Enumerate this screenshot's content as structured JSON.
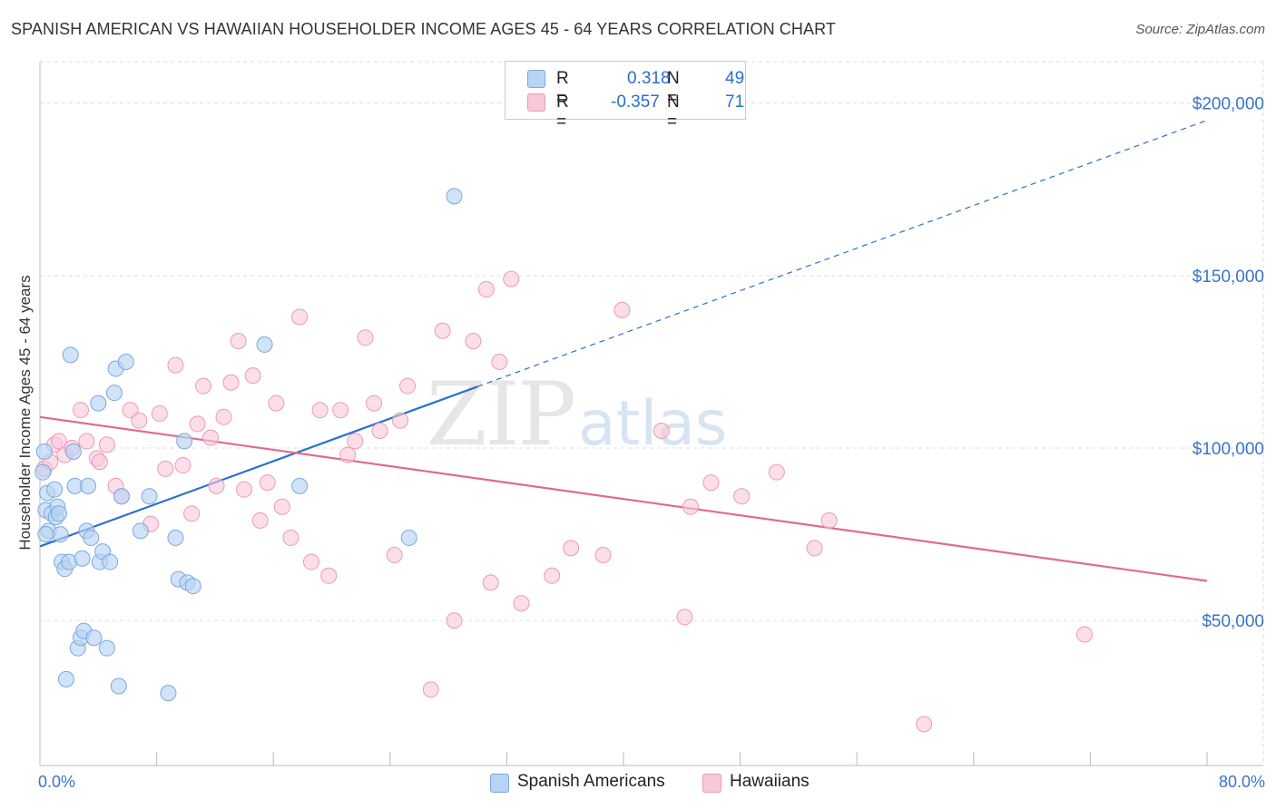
{
  "title": "SPANISH AMERICAN VS HAWAIIAN HOUSEHOLDER INCOME AGES 45 - 64 YEARS CORRELATION CHART",
  "source": "Source: ZipAtlas.com",
  "watermark": {
    "zip": "ZIP",
    "atlas": "atlas"
  },
  "legend": {
    "r_label": "R =",
    "n_label": "N =",
    "rows": [
      {
        "r": "0.318",
        "n": "49"
      },
      {
        "r": "-0.357",
        "n": "71"
      }
    ]
  },
  "bottom_legend": [
    "Spanish Americans",
    "Hawaiians"
  ],
  "colors": {
    "blue_fill": "#b8d4f3",
    "blue_stroke": "#7aa8e0",
    "blue_line": "#2a6fcf",
    "pink_fill": "#f8c8d8",
    "pink_stroke": "#ec9ab4",
    "pink_line": "#e06a94",
    "axis_text": "#3b74c9"
  },
  "chart_data": {
    "type": "scatter",
    "title": "SPANISH AMERICAN VS HAWAIIAN HOUSEHOLDER INCOME AGES 45 - 64 YEARS CORRELATION CHART",
    "xlabel": "",
    "ylabel": "Householder Income Ages 45 - 64 years",
    "xlim": [
      0,
      80
    ],
    "ylim": [
      8000,
      212000
    ],
    "x_tick_labels": [
      "0.0%",
      "80.0%"
    ],
    "y_ticks": [
      50000,
      100000,
      150000,
      200000
    ],
    "y_tick_labels": [
      "$50,000",
      "$100,000",
      "$150,000",
      "$200,000"
    ],
    "grid": true,
    "series": [
      {
        "name": "Spanish Americans",
        "r": 0.318,
        "n": 49,
        "trend": {
          "x0": 0,
          "y0": 71500,
          "x1": 80,
          "y1": 195000,
          "solid_until_x": 30
        },
        "points": [
          [
            0.2,
            93000
          ],
          [
            0.3,
            99000
          ],
          [
            0.4,
            82000
          ],
          [
            0.5,
            87000
          ],
          [
            0.6,
            76000
          ],
          [
            0.8,
            81000
          ],
          [
            1.0,
            88000
          ],
          [
            1.1,
            80000
          ],
          [
            1.2,
            83000
          ],
          [
            1.3,
            81000
          ],
          [
            1.4,
            75000
          ],
          [
            1.5,
            67000
          ],
          [
            1.7,
            65000
          ],
          [
            1.8,
            33000
          ],
          [
            2.0,
            67000
          ],
          [
            2.1,
            127000
          ],
          [
            2.3,
            99000
          ],
          [
            2.4,
            89000
          ],
          [
            2.6,
            42000
          ],
          [
            2.8,
            45000
          ],
          [
            2.9,
            68000
          ],
          [
            3.0,
            47000
          ],
          [
            3.2,
            76000
          ],
          [
            3.3,
            89000
          ],
          [
            3.5,
            74000
          ],
          [
            3.7,
            45000
          ],
          [
            4.0,
            113000
          ],
          [
            4.1,
            67000
          ],
          [
            4.3,
            70000
          ],
          [
            4.6,
            42000
          ],
          [
            4.8,
            67000
          ],
          [
            5.1,
            116000
          ],
          [
            5.2,
            123000
          ],
          [
            5.4,
            31000
          ],
          [
            5.6,
            86000
          ],
          [
            5.9,
            125000
          ],
          [
            6.9,
            76000
          ],
          [
            7.5,
            86000
          ],
          [
            8.8,
            29000
          ],
          [
            9.3,
            74000
          ],
          [
            9.5,
            62000
          ],
          [
            9.9,
            102000
          ],
          [
            10.1,
            61000
          ],
          [
            10.5,
            60000
          ],
          [
            15.4,
            130000
          ],
          [
            17.8,
            89000
          ],
          [
            25.3,
            74000
          ],
          [
            28.4,
            173000
          ],
          [
            0.4,
            75000
          ]
        ]
      },
      {
        "name": "Hawaiians",
        "r": -0.357,
        "n": 71,
        "trend": {
          "x0": 0,
          "y0": 109000,
          "x1": 80,
          "y1": 61500
        },
        "points": [
          [
            0.3,
            94000
          ],
          [
            0.7,
            96000
          ],
          [
            1.0,
            101000
          ],
          [
            1.3,
            102000
          ],
          [
            1.7,
            98000
          ],
          [
            2.2,
            100000
          ],
          [
            2.8,
            111000
          ],
          [
            3.2,
            102000
          ],
          [
            3.9,
            97000
          ],
          [
            4.1,
            96000
          ],
          [
            4.6,
            101000
          ],
          [
            5.2,
            89000
          ],
          [
            5.6,
            86000
          ],
          [
            6.2,
            111000
          ],
          [
            6.8,
            108000
          ],
          [
            7.6,
            78000
          ],
          [
            8.2,
            110000
          ],
          [
            8.6,
            94000
          ],
          [
            9.3,
            124000
          ],
          [
            9.8,
            95000
          ],
          [
            10.4,
            81000
          ],
          [
            10.8,
            107000
          ],
          [
            11.2,
            118000
          ],
          [
            11.7,
            103000
          ],
          [
            12.1,
            89000
          ],
          [
            12.6,
            109000
          ],
          [
            13.1,
            119000
          ],
          [
            13.6,
            131000
          ],
          [
            14.0,
            88000
          ],
          [
            14.6,
            121000
          ],
          [
            15.1,
            79000
          ],
          [
            15.6,
            90000
          ],
          [
            16.2,
            113000
          ],
          [
            16.6,
            83000
          ],
          [
            17.2,
            74000
          ],
          [
            17.8,
            138000
          ],
          [
            18.6,
            67000
          ],
          [
            19.2,
            111000
          ],
          [
            19.8,
            63000
          ],
          [
            20.6,
            111000
          ],
          [
            21.1,
            98000
          ],
          [
            21.6,
            102000
          ],
          [
            22.3,
            132000
          ],
          [
            22.9,
            113000
          ],
          [
            23.3,
            105000
          ],
          [
            24.3,
            69000
          ],
          [
            24.7,
            108000
          ],
          [
            25.2,
            118000
          ],
          [
            26.8,
            30000
          ],
          [
            27.6,
            134000
          ],
          [
            28.4,
            50000
          ],
          [
            29.7,
            131000
          ],
          [
            30.6,
            146000
          ],
          [
            30.9,
            61000
          ],
          [
            31.5,
            125000
          ],
          [
            32.3,
            149000
          ],
          [
            33.0,
            55000
          ],
          [
            35.1,
            63000
          ],
          [
            36.4,
            71000
          ],
          [
            38.6,
            69000
          ],
          [
            39.9,
            140000
          ],
          [
            42.6,
            105000
          ],
          [
            44.2,
            51000
          ],
          [
            44.6,
            83000
          ],
          [
            46.0,
            90000
          ],
          [
            48.1,
            86000
          ],
          [
            50.5,
            93000
          ],
          [
            53.1,
            71000
          ],
          [
            54.1,
            79000
          ],
          [
            60.6,
            20000
          ],
          [
            71.6,
            46000
          ]
        ]
      }
    ]
  }
}
